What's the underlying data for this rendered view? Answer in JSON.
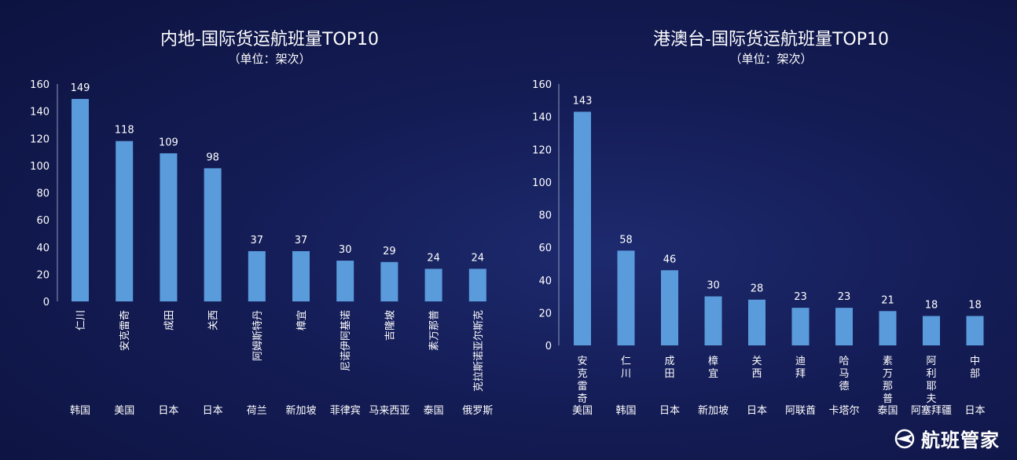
{
  "brand": {
    "name": "航班管家"
  },
  "chart_data": [
    {
      "type": "bar",
      "title": "内地-国际货运航班量TOP10",
      "subtitle": "（单位：架次）",
      "categories": [
        "仁川",
        "安克雷奇",
        "成田",
        "关西",
        "阿姆斯特丹",
        "樟宜",
        "尼诺伊阿基诺",
        "吉隆坡",
        "素万那普",
        "克拉斯诺亚尔斯克"
      ],
      "countries": [
        "韩国",
        "美国",
        "日本",
        "日本",
        "荷兰",
        "新加坡",
        "菲律宾",
        "马来西亚",
        "泰国",
        "俄罗斯"
      ],
      "values": [
        149,
        118,
        109,
        98,
        37,
        37,
        30,
        29,
        24,
        24
      ],
      "ylim": [
        0,
        160
      ],
      "yticks": [
        0,
        20,
        40,
        60,
        80,
        100,
        120,
        140,
        160
      ],
      "label_orientation": "rotated"
    },
    {
      "type": "bar",
      "title": "港澳台-国际货运航班量TOP10",
      "subtitle": "（单位：架次）",
      "categories": [
        "安克雷奇",
        "仁川",
        "成田",
        "樟宜",
        "关西",
        "迪拜",
        "哈马德",
        "素万那普",
        "阿利耶夫",
        "中部"
      ],
      "countries": [
        "美国",
        "韩国",
        "日本",
        "新加坡",
        "日本",
        "阿联酋",
        "卡塔尔",
        "泰国",
        "阿塞拜疆",
        "日本"
      ],
      "values": [
        143,
        58,
        46,
        30,
        28,
        23,
        23,
        21,
        18,
        18
      ],
      "ylim": [
        0,
        160
      ],
      "yticks": [
        0,
        20,
        40,
        60,
        80,
        100,
        120,
        140,
        160
      ],
      "label_orientation": "stacked"
    }
  ]
}
